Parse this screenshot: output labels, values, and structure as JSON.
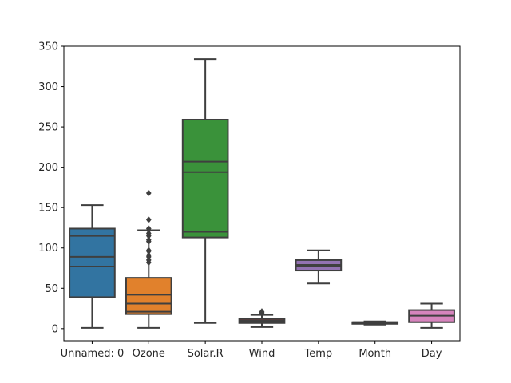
{
  "chart_data": {
    "type": "box",
    "title": "",
    "xlabel": "",
    "ylabel": "",
    "ylim": [
      -15,
      350
    ],
    "yticks": [
      0,
      50,
      100,
      150,
      200,
      250,
      300,
      350
    ],
    "grid": false,
    "categories": [
      "Unnamed: 0",
      "Ozone",
      "Solar.R",
      "Wind",
      "Temp",
      "Month",
      "Day"
    ],
    "boxes": [
      {
        "category": "Unnamed: 0",
        "color": "#3274a1",
        "whisker_low": 1,
        "q1": 39,
        "median_lines": [
          77,
          89,
          115
        ],
        "q3": 124,
        "whisker_high": 153,
        "outliers": []
      },
      {
        "category": "Ozone",
        "color": "#e1812c",
        "whisker_low": 1,
        "q1": 18,
        "median_lines": [
          21,
          31,
          42
        ],
        "q3": 63,
        "whisker_high": 122,
        "outliers": [
          82,
          85,
          89,
          91,
          96,
          97,
          108,
          110,
          115,
          118,
          122,
          124,
          135,
          168
        ]
      },
      {
        "category": "Solar.R",
        "color": "#3a923a",
        "whisker_low": 7,
        "q1": 113,
        "median_lines": [
          120,
          194,
          207
        ],
        "q3": 259,
        "whisker_high": 334,
        "outliers": []
      },
      {
        "category": "Wind",
        "color": "#c03d3e",
        "whisker_low": 2,
        "q1": 7,
        "median_lines": [
          9,
          10
        ],
        "q3": 12,
        "whisker_high": 17,
        "outliers": [
          19,
          20,
          21
        ]
      },
      {
        "category": "Temp",
        "color": "#9372b2",
        "whisker_low": 56,
        "q1": 72,
        "median_lines": [
          77,
          79
        ],
        "q3": 85,
        "whisker_high": 97,
        "outliers": []
      },
      {
        "category": "Month",
        "color": "#845b53",
        "whisker_low": 5,
        "q1": 6,
        "median_lines": [
          7,
          8
        ],
        "q3": 8,
        "whisker_high": 9,
        "outliers": []
      },
      {
        "category": "Day",
        "color": "#d684bd",
        "whisker_low": 1,
        "q1": 8,
        "median_lines": [
          16
        ],
        "q3": 23,
        "whisker_high": 31,
        "outliers": []
      }
    ]
  }
}
